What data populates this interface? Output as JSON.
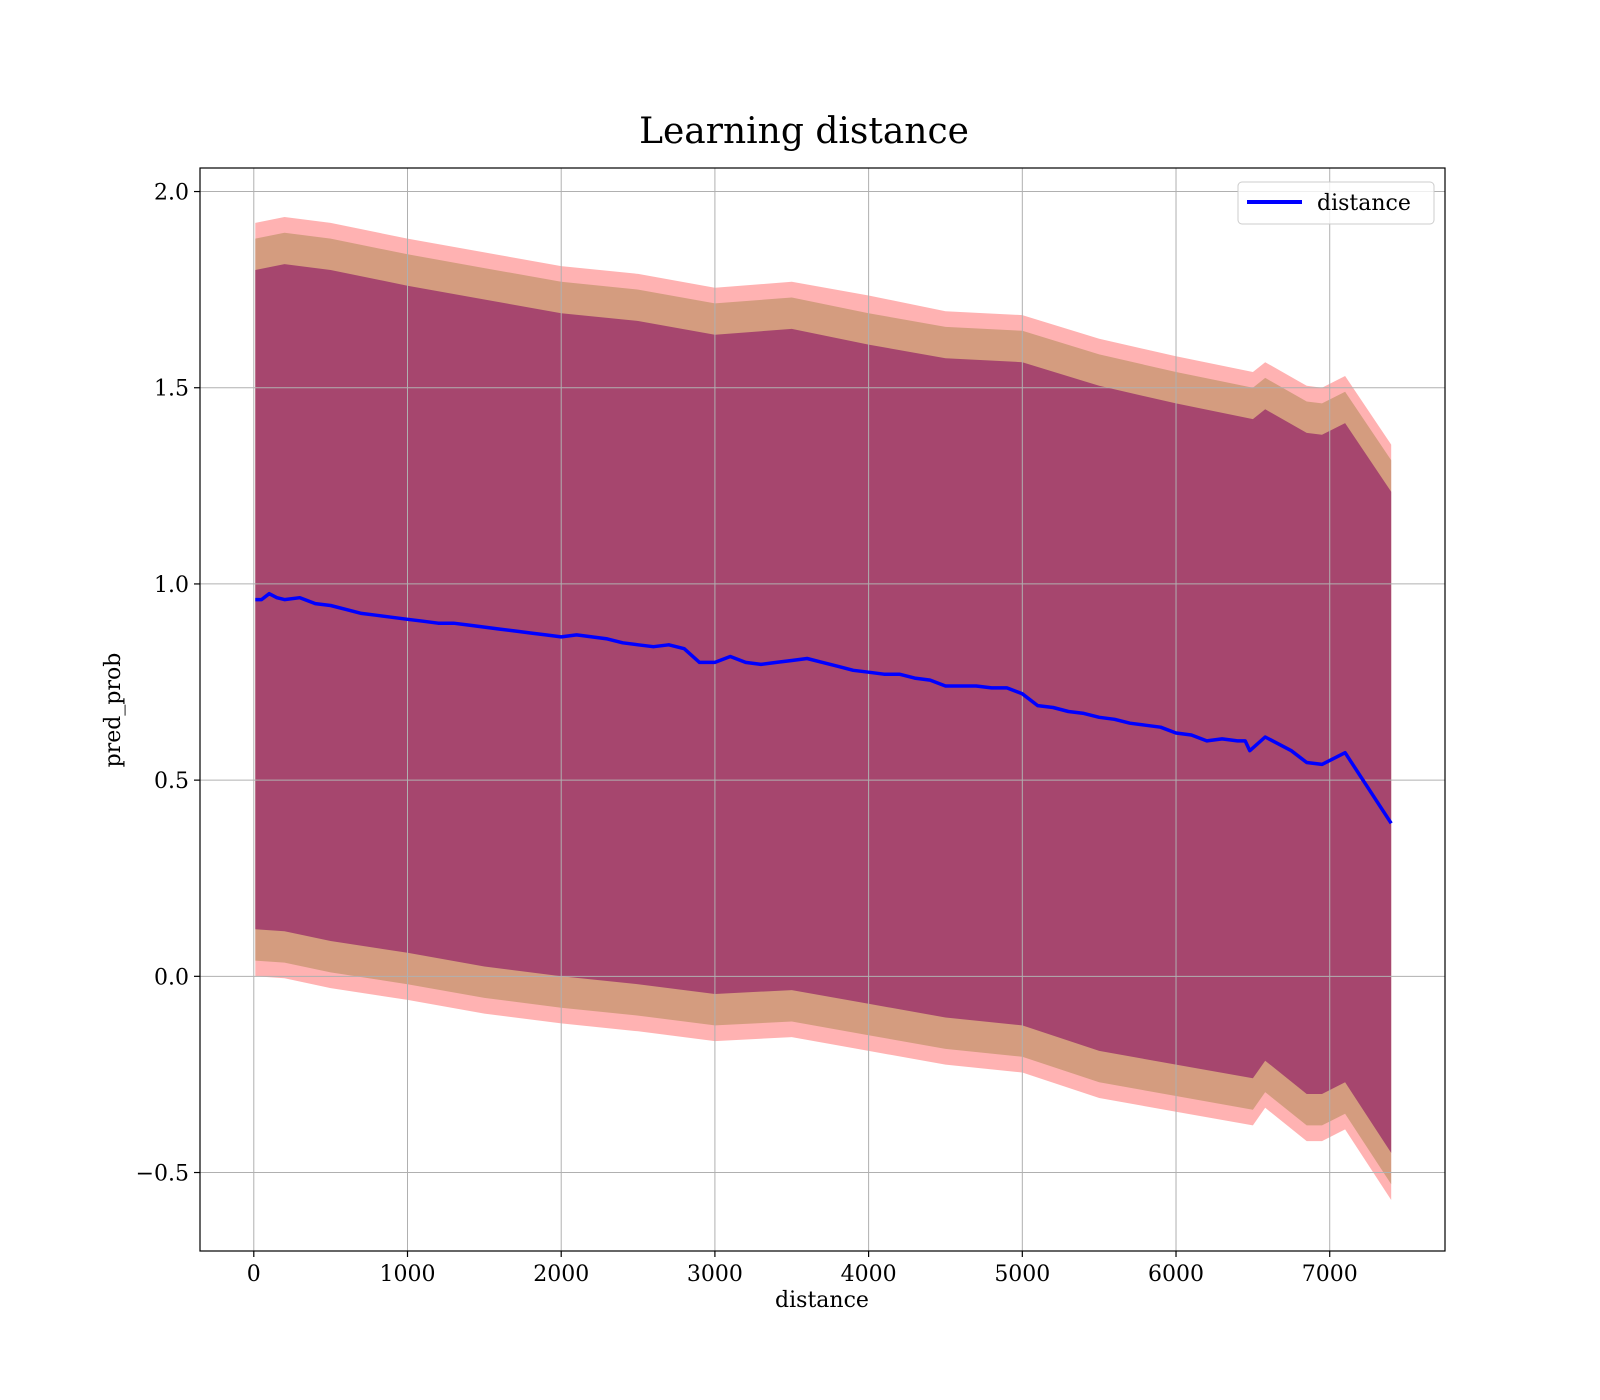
{
  "chart_data": {
    "type": "line",
    "title": "Learning distance",
    "xlabel": "distance",
    "ylabel": "pred_prob",
    "xlim": [
      -350,
      7750
    ],
    "ylim": [
      -0.7,
      2.06
    ],
    "xticks": [
      0,
      1000,
      2000,
      3000,
      4000,
      5000,
      6000,
      7000
    ],
    "xtick_labels": [
      "0",
      "1000",
      "2000",
      "3000",
      "4000",
      "5000",
      "6000",
      "7000"
    ],
    "yticks": [
      -0.5,
      0.0,
      0.5,
      1.0,
      1.5,
      2.0
    ],
    "ytick_labels": [
      "−0.5",
      "0.0",
      "0.5",
      "1.0",
      "1.5",
      "2.0"
    ],
    "grid": true,
    "legend_position": "upper right",
    "series": [
      {
        "name": "distance",
        "color": "#0000ff",
        "x": [
          10,
          50,
          100,
          150,
          200,
          300,
          400,
          500,
          600,
          700,
          800,
          900,
          1000,
          1100,
          1200,
          1300,
          1400,
          1500,
          1600,
          1700,
          1800,
          1900,
          2000,
          2100,
          2200,
          2300,
          2400,
          2500,
          2600,
          2700,
          2800,
          2900,
          3000,
          3100,
          3200,
          3300,
          3400,
          3500,
          3600,
          3700,
          3800,
          3900,
          4000,
          4100,
          4200,
          4300,
          4400,
          4500,
          4600,
          4700,
          4800,
          4900,
          5000,
          5100,
          5200,
          5300,
          5400,
          5500,
          5600,
          5700,
          5800,
          5900,
          6000,
          6100,
          6200,
          6300,
          6400,
          6450,
          6480,
          6580,
          6750,
          6850,
          6950,
          7100,
          7400
        ],
        "y": [
          0.96,
          0.96,
          0.975,
          0.965,
          0.96,
          0.965,
          0.95,
          0.945,
          0.935,
          0.925,
          0.92,
          0.915,
          0.91,
          0.905,
          0.9,
          0.9,
          0.895,
          0.89,
          0.885,
          0.88,
          0.875,
          0.87,
          0.865,
          0.87,
          0.865,
          0.86,
          0.85,
          0.845,
          0.84,
          0.845,
          0.835,
          0.8,
          0.8,
          0.815,
          0.8,
          0.795,
          0.8,
          0.805,
          0.81,
          0.8,
          0.79,
          0.78,
          0.775,
          0.77,
          0.77,
          0.76,
          0.755,
          0.74,
          0.74,
          0.74,
          0.735,
          0.735,
          0.72,
          0.69,
          0.685,
          0.675,
          0.67,
          0.66,
          0.655,
          0.645,
          0.64,
          0.635,
          0.62,
          0.615,
          0.6,
          0.605,
          0.6,
          0.6,
          0.575,
          0.61,
          0.575,
          0.545,
          0.54,
          0.57,
          0.39
        ]
      }
    ],
    "bands": [
      {
        "color": "#ff0000",
        "opacity": 0.3,
        "x": [
          10,
          200,
          500,
          1000,
          1500,
          2000,
          2500,
          3000,
          3500,
          4000,
          4500,
          5000,
          5500,
          6000,
          6500,
          6580,
          6850,
          6950,
          7100,
          7400
        ],
        "upper": [
          1.92,
          1.935,
          1.92,
          1.88,
          1.845,
          1.81,
          1.79,
          1.755,
          1.77,
          1.735,
          1.695,
          1.685,
          1.625,
          1.58,
          1.54,
          1.565,
          1.505,
          1.5,
          1.53,
          1.355
        ],
        "lower": [
          0.0,
          -0.005,
          -0.03,
          -0.06,
          -0.095,
          -0.12,
          -0.14,
          -0.165,
          -0.155,
          -0.19,
          -0.225,
          -0.245,
          -0.31,
          -0.345,
          -0.38,
          -0.335,
          -0.42,
          -0.42,
          -0.39,
          -0.57
        ]
      },
      {
        "color": "#a08040",
        "opacity": 0.45,
        "x": [
          10,
          200,
          500,
          1000,
          1500,
          2000,
          2500,
          3000,
          3500,
          4000,
          4500,
          5000,
          5500,
          6000,
          6500,
          6580,
          6850,
          6950,
          7100,
          7400
        ],
        "upper": [
          1.88,
          1.895,
          1.88,
          1.84,
          1.805,
          1.77,
          1.75,
          1.715,
          1.73,
          1.69,
          1.655,
          1.645,
          1.585,
          1.54,
          1.5,
          1.525,
          1.465,
          1.46,
          1.49,
          1.315
        ],
        "lower": [
          0.04,
          0.035,
          0.01,
          -0.02,
          -0.055,
          -0.08,
          -0.1,
          -0.125,
          -0.115,
          -0.15,
          -0.185,
          -0.205,
          -0.27,
          -0.305,
          -0.34,
          -0.295,
          -0.38,
          -0.38,
          -0.35,
          -0.53
        ]
      },
      {
        "color": "#800060",
        "opacity": 0.55,
        "x": [
          10,
          200,
          500,
          1000,
          1500,
          2000,
          2500,
          3000,
          3500,
          4000,
          4500,
          5000,
          5500,
          6000,
          6500,
          6580,
          6850,
          6950,
          7100,
          7400
        ],
        "upper": [
          1.8,
          1.815,
          1.8,
          1.76,
          1.725,
          1.69,
          1.67,
          1.635,
          1.65,
          1.61,
          1.575,
          1.565,
          1.505,
          1.46,
          1.42,
          1.445,
          1.385,
          1.38,
          1.41,
          1.235
        ],
        "lower": [
          0.12,
          0.115,
          0.09,
          0.06,
          0.025,
          0.0,
          -0.02,
          -0.045,
          -0.035,
          -0.07,
          -0.105,
          -0.125,
          -0.19,
          -0.225,
          -0.26,
          -0.215,
          -0.3,
          -0.3,
          -0.27,
          -0.45
        ]
      }
    ]
  }
}
